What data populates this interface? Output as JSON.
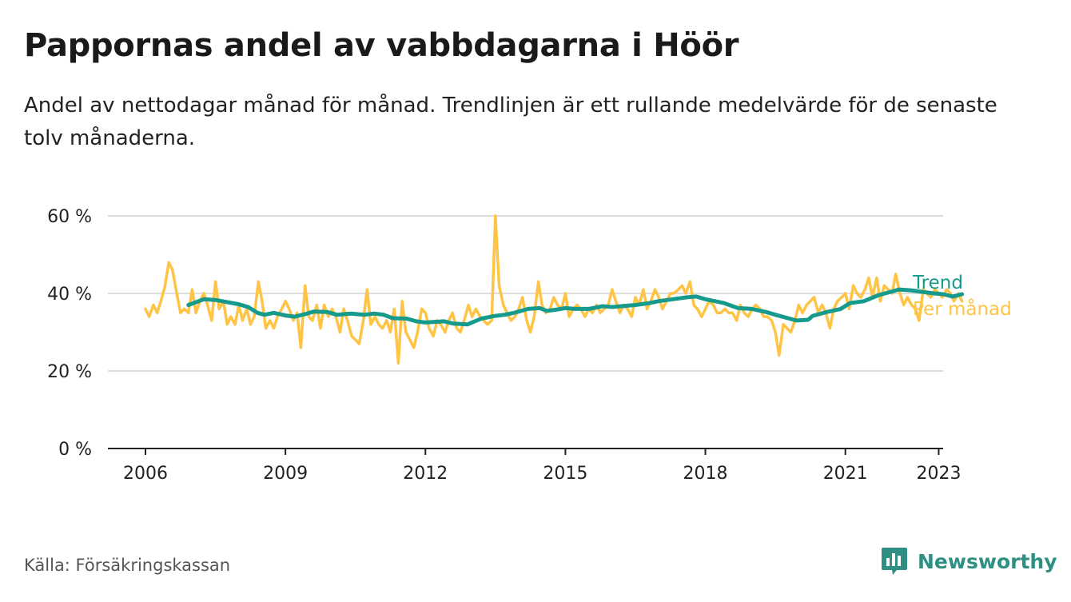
{
  "title": "Pappornas andel av vabbdagarna i Höör",
  "subtitle": "Andel av nettodagar månad för månad. Trendlinjen är ett rullande medelvärde för de senaste tolv månaderna.",
  "source": "Källa: Försäkringskassan",
  "brand": "Newsworthy",
  "colors": {
    "trend": "#159a8c",
    "monthly": "#ffc445",
    "grid": "#dddddd",
    "axis": "#222222",
    "brand": "#2f8f83"
  },
  "chart_data": {
    "type": "line",
    "xlim": [
      2006.0,
      2023.9
    ],
    "ylim": [
      0,
      60
    ],
    "yticks": [
      0,
      20,
      40,
      60
    ],
    "ytick_labels": [
      "0 %",
      "20 %",
      "40 %",
      "60 %"
    ],
    "xticks": [
      2006,
      2009,
      2012,
      2015,
      2018,
      2021,
      2023
    ],
    "xtick_labels": [
      "2006",
      "2009",
      "2012",
      "2015",
      "2018",
      "2021",
      "2023"
    ],
    "grid": true,
    "legend_placement": "right",
    "series": [
      {
        "name": "Trend",
        "color": "#159a8c",
        "points": [
          [
            2006.92,
            37
          ],
          [
            2007.25,
            38.5
          ],
          [
            2007.5,
            38.3
          ],
          [
            2008.0,
            37.2
          ],
          [
            2008.2,
            36.5
          ],
          [
            2008.4,
            35
          ],
          [
            2008.55,
            34.5
          ],
          [
            2008.75,
            35
          ],
          [
            2009.0,
            34.3
          ],
          [
            2009.2,
            34
          ],
          [
            2009.4,
            34.6
          ],
          [
            2009.6,
            35.3
          ],
          [
            2009.9,
            35.2
          ],
          [
            2010.1,
            34.5
          ],
          [
            2010.4,
            34.8
          ],
          [
            2010.7,
            34.5
          ],
          [
            2010.9,
            34.8
          ],
          [
            2011.1,
            34.5
          ],
          [
            2011.3,
            33.6
          ],
          [
            2011.6,
            33.5
          ],
          [
            2011.8,
            32.8
          ],
          [
            2012.0,
            32.5
          ],
          [
            2012.4,
            32.8
          ],
          [
            2012.6,
            32.2
          ],
          [
            2012.9,
            32
          ],
          [
            2013.2,
            33.5
          ],
          [
            2013.5,
            34.2
          ],
          [
            2013.7,
            34.5
          ],
          [
            2013.9,
            35
          ],
          [
            2014.2,
            36
          ],
          [
            2014.45,
            36.2
          ],
          [
            2014.6,
            35.5
          ],
          [
            2014.8,
            35.8
          ],
          [
            2015.0,
            36.2
          ],
          [
            2015.2,
            36
          ],
          [
            2015.5,
            36
          ],
          [
            2015.8,
            36.7
          ],
          [
            2016.0,
            36.5
          ],
          [
            2016.3,
            36.8
          ],
          [
            2016.5,
            37
          ],
          [
            2016.8,
            37.5
          ],
          [
            2017.0,
            38
          ],
          [
            2017.3,
            38.5
          ],
          [
            2017.6,
            39
          ],
          [
            2017.8,
            39.2
          ],
          [
            2018.0,
            38.5
          ],
          [
            2018.4,
            37.5
          ],
          [
            2018.7,
            36.2
          ],
          [
            2019.0,
            36
          ],
          [
            2019.3,
            35.2
          ],
          [
            2019.5,
            34.5
          ],
          [
            2019.8,
            33.5
          ],
          [
            2019.95,
            33
          ],
          [
            2020.2,
            33.2
          ],
          [
            2020.3,
            34.2
          ],
          [
            2020.6,
            35.2
          ],
          [
            2020.9,
            36
          ],
          [
            2021.1,
            37.5
          ],
          [
            2021.4,
            38
          ],
          [
            2021.7,
            39.5
          ],
          [
            2022.0,
            40.5
          ],
          [
            2022.15,
            41
          ],
          [
            2022.4,
            40.8
          ],
          [
            2022.7,
            40.3
          ],
          [
            2022.9,
            40
          ],
          [
            2023.1,
            39.8
          ],
          [
            2023.3,
            39.2
          ],
          [
            2023.5,
            39.8
          ]
        ]
      },
      {
        "name": "Per månad",
        "color": "#ffc445",
        "points": [
          [
            2006.0,
            36
          ],
          [
            2006.08,
            34
          ],
          [
            2006.17,
            37
          ],
          [
            2006.25,
            35
          ],
          [
            2006.33,
            38
          ],
          [
            2006.42,
            42
          ],
          [
            2006.5,
            48
          ],
          [
            2006.58,
            46
          ],
          [
            2006.67,
            40
          ],
          [
            2006.75,
            35
          ],
          [
            2006.83,
            36
          ],
          [
            2006.92,
            35
          ],
          [
            2007.0,
            41
          ],
          [
            2007.08,
            35
          ],
          [
            2007.17,
            38
          ],
          [
            2007.25,
            40
          ],
          [
            2007.33,
            37
          ],
          [
            2007.42,
            33
          ],
          [
            2007.5,
            43
          ],
          [
            2007.58,
            36
          ],
          [
            2007.67,
            38
          ],
          [
            2007.75,
            32
          ],
          [
            2007.83,
            34
          ],
          [
            2007.92,
            32
          ],
          [
            2008.0,
            37
          ],
          [
            2008.08,
            33
          ],
          [
            2008.17,
            36
          ],
          [
            2008.25,
            32
          ],
          [
            2008.33,
            34
          ],
          [
            2008.42,
            43
          ],
          [
            2008.5,
            38
          ],
          [
            2008.58,
            31
          ],
          [
            2008.67,
            33
          ],
          [
            2008.75,
            31
          ],
          [
            2008.83,
            34
          ],
          [
            2008.92,
            36
          ],
          [
            2009.0,
            38
          ],
          [
            2009.08,
            36
          ],
          [
            2009.17,
            33
          ],
          [
            2009.25,
            35
          ],
          [
            2009.33,
            26
          ],
          [
            2009.42,
            42
          ],
          [
            2009.5,
            34
          ],
          [
            2009.58,
            33
          ],
          [
            2009.67,
            37
          ],
          [
            2009.75,
            31
          ],
          [
            2009.83,
            37
          ],
          [
            2009.92,
            34
          ],
          [
            2010.0,
            36
          ],
          [
            2010.08,
            34
          ],
          [
            2010.17,
            30
          ],
          [
            2010.25,
            36
          ],
          [
            2010.33,
            33
          ],
          [
            2010.42,
            29
          ],
          [
            2010.5,
            28
          ],
          [
            2010.58,
            27
          ],
          [
            2010.67,
            33
          ],
          [
            2010.75,
            41
          ],
          [
            2010.83,
            32
          ],
          [
            2010.92,
            34
          ],
          [
            2011.0,
            32
          ],
          [
            2011.08,
            31
          ],
          [
            2011.17,
            33
          ],
          [
            2011.25,
            30
          ],
          [
            2011.33,
            36
          ],
          [
            2011.42,
            22
          ],
          [
            2011.5,
            38
          ],
          [
            2011.58,
            30
          ],
          [
            2011.67,
            28
          ],
          [
            2011.75,
            26
          ],
          [
            2011.83,
            30
          ],
          [
            2011.92,
            36
          ],
          [
            2012.0,
            35
          ],
          [
            2012.08,
            31
          ],
          [
            2012.17,
            29
          ],
          [
            2012.25,
            33
          ],
          [
            2012.33,
            32
          ],
          [
            2012.42,
            30
          ],
          [
            2012.5,
            33
          ],
          [
            2012.58,
            35
          ],
          [
            2012.67,
            31
          ],
          [
            2012.75,
            30
          ],
          [
            2012.83,
            33
          ],
          [
            2012.92,
            37
          ],
          [
            2013.0,
            34
          ],
          [
            2013.08,
            36
          ],
          [
            2013.17,
            34
          ],
          [
            2013.25,
            33
          ],
          [
            2013.33,
            32
          ],
          [
            2013.42,
            33
          ],
          [
            2013.5,
            60
          ],
          [
            2013.58,
            42
          ],
          [
            2013.67,
            37
          ],
          [
            2013.75,
            35
          ],
          [
            2013.83,
            33
          ],
          [
            2013.92,
            34
          ],
          [
            2014.0,
            36
          ],
          [
            2014.08,
            39
          ],
          [
            2014.17,
            33
          ],
          [
            2014.25,
            30
          ],
          [
            2014.33,
            34
          ],
          [
            2014.42,
            43
          ],
          [
            2014.5,
            37
          ],
          [
            2014.58,
            35
          ],
          [
            2014.67,
            36
          ],
          [
            2014.75,
            39
          ],
          [
            2014.83,
            37
          ],
          [
            2014.92,
            36
          ],
          [
            2015.0,
            40
          ],
          [
            2015.08,
            34
          ],
          [
            2015.17,
            36
          ],
          [
            2015.25,
            37
          ],
          [
            2015.33,
            36
          ],
          [
            2015.42,
            34
          ],
          [
            2015.5,
            36
          ],
          [
            2015.58,
            35
          ],
          [
            2015.67,
            37
          ],
          [
            2015.75,
            35
          ],
          [
            2015.83,
            36
          ],
          [
            2015.92,
            37
          ],
          [
            2016.0,
            41
          ],
          [
            2016.08,
            38
          ],
          [
            2016.17,
            35
          ],
          [
            2016.25,
            37
          ],
          [
            2016.33,
            36
          ],
          [
            2016.42,
            34
          ],
          [
            2016.5,
            39
          ],
          [
            2016.58,
            37
          ],
          [
            2016.67,
            41
          ],
          [
            2016.75,
            36
          ],
          [
            2016.83,
            38
          ],
          [
            2016.92,
            41
          ],
          [
            2017.0,
            39
          ],
          [
            2017.08,
            36
          ],
          [
            2017.17,
            38
          ],
          [
            2017.25,
            40
          ],
          [
            2017.33,
            40
          ],
          [
            2017.42,
            41
          ],
          [
            2017.5,
            42
          ],
          [
            2017.58,
            40
          ],
          [
            2017.67,
            43
          ],
          [
            2017.75,
            37
          ],
          [
            2017.83,
            36
          ],
          [
            2017.92,
            34
          ],
          [
            2018.0,
            36
          ],
          [
            2018.08,
            38
          ],
          [
            2018.17,
            37
          ],
          [
            2018.25,
            35
          ],
          [
            2018.33,
            35
          ],
          [
            2018.42,
            36
          ],
          [
            2018.5,
            35
          ],
          [
            2018.58,
            35
          ],
          [
            2018.67,
            33
          ],
          [
            2018.75,
            37
          ],
          [
            2018.83,
            35
          ],
          [
            2018.92,
            34
          ],
          [
            2019.0,
            36
          ],
          [
            2019.08,
            37
          ],
          [
            2019.17,
            36
          ],
          [
            2019.25,
            34
          ],
          [
            2019.33,
            34
          ],
          [
            2019.42,
            33
          ],
          [
            2019.5,
            30
          ],
          [
            2019.58,
            24
          ],
          [
            2019.67,
            32
          ],
          [
            2019.75,
            31
          ],
          [
            2019.83,
            30
          ],
          [
            2019.92,
            33
          ],
          [
            2020.0,
            37
          ],
          [
            2020.08,
            35
          ],
          [
            2020.17,
            37
          ],
          [
            2020.25,
            38
          ],
          [
            2020.33,
            39
          ],
          [
            2020.42,
            35
          ],
          [
            2020.5,
            37
          ],
          [
            2020.58,
            35
          ],
          [
            2020.67,
            31
          ],
          [
            2020.75,
            36
          ],
          [
            2020.83,
            38
          ],
          [
            2020.92,
            39
          ],
          [
            2021.0,
            40
          ],
          [
            2021.08,
            36
          ],
          [
            2021.17,
            42
          ],
          [
            2021.25,
            40
          ],
          [
            2021.33,
            39
          ],
          [
            2021.42,
            41
          ],
          [
            2021.5,
            44
          ],
          [
            2021.58,
            39
          ],
          [
            2021.67,
            44
          ],
          [
            2021.75,
            38
          ],
          [
            2021.83,
            42
          ],
          [
            2021.92,
            41
          ],
          [
            2022.0,
            40
          ],
          [
            2022.08,
            45
          ],
          [
            2022.17,
            40
          ],
          [
            2022.25,
            37
          ],
          [
            2022.33,
            39
          ],
          [
            2022.42,
            37
          ],
          [
            2022.5,
            36
          ],
          [
            2022.58,
            33
          ],
          [
            2022.67,
            41
          ],
          [
            2022.75,
            40
          ],
          [
            2022.83,
            39
          ],
          [
            2022.92,
            41
          ],
          [
            2023.0,
            40
          ],
          [
            2023.08,
            39
          ],
          [
            2023.17,
            41
          ],
          [
            2023.25,
            40
          ],
          [
            2023.33,
            38
          ],
          [
            2023.42,
            40
          ],
          [
            2023.5,
            38
          ]
        ]
      }
    ]
  }
}
